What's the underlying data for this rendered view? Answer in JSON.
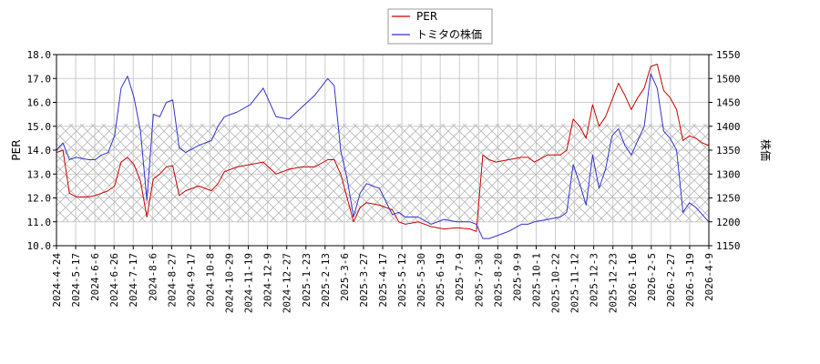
{
  "chart_data": {
    "type": "line",
    "legend_position": "top-center",
    "grid": true,
    "hatched_band": {
      "y_left": [
        11.0,
        15.1
      ]
    },
    "x_tick_labels": [
      "2024-4-24",
      "2024-5-17",
      "2024-6-6",
      "2024-6-26",
      "2024-7-17",
      "2024-8-6",
      "2024-8-27",
      "2024-9-17",
      "2024-10-8",
      "2024-10-29",
      "2024-11-19",
      "2024-12-9",
      "2024-12-27",
      "2025-1-23",
      "2025-2-13",
      "2025-3-6",
      "2025-3-27",
      "2025-4-17",
      "2025-5-12",
      "2025-5-30",
      "2025-6-19",
      "2025-7-9",
      "2025-7-30",
      "2025-8-20",
      "2025-9-9",
      "2025-10-1",
      "2025-10-22",
      "2025-11-12",
      "2025-12-3",
      "2025-12-23",
      "2026-1-16",
      "2026-2-5",
      "2026-2-27",
      "2026-3-19",
      "2026-4-9"
    ],
    "y_left": {
      "label": "PER",
      "min": 10.0,
      "max": 18.0,
      "ticks": [
        "10.0",
        "11.0",
        "12.0",
        "13.0",
        "14.0",
        "15.0",
        "16.0",
        "17.0",
        "18.0"
      ]
    },
    "y_right": {
      "label": "株価",
      "min": 1150,
      "max": 1550,
      "ticks": [
        "1150",
        "1200",
        "1250",
        "1300",
        "1350",
        "1400",
        "1450",
        "1500",
        "1550"
      ]
    },
    "series": [
      {
        "name": "PER",
        "axis": "left",
        "color": "#cc0000",
        "points": [
          [
            0,
            13.9
          ],
          [
            1,
            14.0
          ],
          [
            2,
            12.2
          ],
          [
            3,
            12.05
          ],
          [
            5,
            12.05
          ],
          [
            6,
            12.1
          ],
          [
            7,
            12.2
          ],
          [
            8,
            12.3
          ],
          [
            9,
            12.5
          ],
          [
            10,
            13.5
          ],
          [
            11,
            13.7
          ],
          [
            12,
            13.4
          ],
          [
            13,
            12.7
          ],
          [
            14,
            11.2
          ],
          [
            15,
            12.8
          ],
          [
            16,
            13.0
          ],
          [
            17,
            13.3
          ],
          [
            18,
            13.35
          ],
          [
            19,
            12.1
          ],
          [
            20,
            12.3
          ],
          [
            22,
            12.5
          ],
          [
            24,
            12.3
          ],
          [
            25,
            12.6
          ],
          [
            26,
            13.1
          ],
          [
            28,
            13.3
          ],
          [
            30,
            13.4
          ],
          [
            32,
            13.5
          ],
          [
            34,
            13.0
          ],
          [
            36,
            13.2
          ],
          [
            38,
            13.3
          ],
          [
            40,
            13.3
          ],
          [
            42,
            13.6
          ],
          [
            43,
            13.6
          ],
          [
            44,
            13.0
          ],
          [
            45,
            12.0
          ],
          [
            46,
            11.0
          ],
          [
            47,
            11.6
          ],
          [
            48,
            11.8
          ],
          [
            50,
            11.7
          ],
          [
            52,
            11.5
          ],
          [
            53,
            11.0
          ],
          [
            54,
            10.9
          ],
          [
            56,
            11.0
          ],
          [
            58,
            10.8
          ],
          [
            60,
            10.7
          ],
          [
            62,
            10.75
          ],
          [
            64,
            10.7
          ],
          [
            65,
            10.6
          ],
          [
            66,
            13.8
          ],
          [
            67,
            13.6
          ],
          [
            68,
            13.5
          ],
          [
            70,
            13.6
          ],
          [
            72,
            13.7
          ],
          [
            73,
            13.7
          ],
          [
            74,
            13.5
          ],
          [
            76,
            13.8
          ],
          [
            78,
            13.8
          ],
          [
            79,
            14.0
          ],
          [
            80,
            15.3
          ],
          [
            81,
            15.0
          ],
          [
            82,
            14.5
          ],
          [
            83,
            15.9
          ],
          [
            84,
            15.0
          ],
          [
            85,
            15.4
          ],
          [
            86,
            16.1
          ],
          [
            87,
            16.8
          ],
          [
            88,
            16.3
          ],
          [
            89,
            15.7
          ],
          [
            90,
            16.2
          ],
          [
            91,
            16.6
          ],
          [
            92,
            17.5
          ],
          [
            93,
            17.6
          ],
          [
            94,
            16.5
          ],
          [
            95,
            16.2
          ],
          [
            96,
            15.7
          ],
          [
            97,
            14.4
          ],
          [
            98,
            14.6
          ],
          [
            99,
            14.5
          ],
          [
            100,
            14.3
          ],
          [
            101,
            14.2
          ]
        ]
      },
      {
        "name": "トミタの株価",
        "axis": "right",
        "color": "#3333cc",
        "points": [
          [
            0,
            1350
          ],
          [
            1,
            1365
          ],
          [
            2,
            1330
          ],
          [
            3,
            1335
          ],
          [
            5,
            1330
          ],
          [
            6,
            1330
          ],
          [
            7,
            1340
          ],
          [
            8,
            1345
          ],
          [
            9,
            1380
          ],
          [
            10,
            1480
          ],
          [
            11,
            1505
          ],
          [
            12,
            1460
          ],
          [
            13,
            1390
          ],
          [
            14,
            1245
          ],
          [
            15,
            1425
          ],
          [
            16,
            1420
          ],
          [
            17,
            1450
          ],
          [
            18,
            1455
          ],
          [
            19,
            1355
          ],
          [
            20,
            1345
          ],
          [
            22,
            1360
          ],
          [
            24,
            1370
          ],
          [
            25,
            1400
          ],
          [
            26,
            1420
          ],
          [
            28,
            1430
          ],
          [
            30,
            1445
          ],
          [
            32,
            1480
          ],
          [
            34,
            1420
          ],
          [
            36,
            1415
          ],
          [
            38,
            1440
          ],
          [
            40,
            1465
          ],
          [
            42,
            1500
          ],
          [
            43,
            1485
          ],
          [
            44,
            1350
          ],
          [
            45,
            1290
          ],
          [
            46,
            1210
          ],
          [
            47,
            1260
          ],
          [
            48,
            1280
          ],
          [
            50,
            1270
          ],
          [
            52,
            1215
          ],
          [
            53,
            1220
          ],
          [
            54,
            1210
          ],
          [
            56,
            1210
          ],
          [
            58,
            1195
          ],
          [
            60,
            1205
          ],
          [
            62,
            1200
          ],
          [
            64,
            1200
          ],
          [
            65,
            1195
          ],
          [
            66,
            1165
          ],
          [
            67,
            1165
          ],
          [
            68,
            1170
          ],
          [
            70,
            1180
          ],
          [
            72,
            1195
          ],
          [
            73,
            1195
          ],
          [
            74,
            1200
          ],
          [
            76,
            1205
          ],
          [
            78,
            1210
          ],
          [
            79,
            1220
          ],
          [
            80,
            1320
          ],
          [
            81,
            1280
          ],
          [
            82,
            1235
          ],
          [
            83,
            1340
          ],
          [
            84,
            1270
          ],
          [
            85,
            1310
          ],
          [
            86,
            1380
          ],
          [
            87,
            1395
          ],
          [
            88,
            1360
          ],
          [
            89,
            1340
          ],
          [
            90,
            1370
          ],
          [
            91,
            1400
          ],
          [
            92,
            1510
          ],
          [
            93,
            1480
          ],
          [
            94,
            1390
          ],
          [
            95,
            1375
          ],
          [
            96,
            1350
          ],
          [
            97,
            1220
          ],
          [
            98,
            1240
          ],
          [
            99,
            1230
          ],
          [
            100,
            1215
          ],
          [
            101,
            1200
          ]
        ]
      }
    ]
  }
}
